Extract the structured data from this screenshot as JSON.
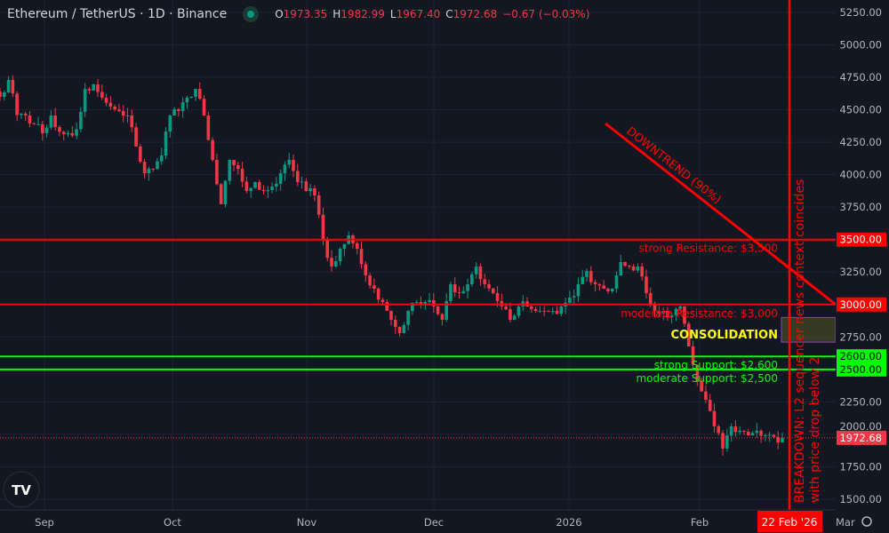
{
  "header": {
    "symbol": "Ethereum / TetherUS · 1D · Binance",
    "o_label": "O",
    "o": "1973.35",
    "h_label": "H",
    "h": "1982.99",
    "l_label": "L",
    "l": "1967.40",
    "c_label": "C",
    "c": "1972.68",
    "change": "−0.67 (−0.03%)"
  },
  "colors": {
    "up": "#089981",
    "down": "#f23645",
    "background": "#131722",
    "resistance": "#ff0000",
    "support": "#00ff00",
    "annotation": "#ff0000",
    "consolidation": "#ffff00"
  },
  "chart_data": {
    "type": "candlestick",
    "ylim": [
      1400,
      5350
    ],
    "y_ticks": [
      "5250.00",
      "5000.00",
      "4750.00",
      "4500.00",
      "4250.00",
      "4000.00",
      "3750.00",
      "3500.00",
      "3250.00",
      "3000.00",
      "2750.00",
      "2500.00",
      "2250.00",
      "2000.00",
      "1750.00",
      "1500.00"
    ],
    "y_tick_values": [
      5250,
      5000,
      4750,
      4500,
      4250,
      4000,
      3750,
      3500,
      3250,
      3000,
      2750,
      2500,
      2250,
      2000,
      1750,
      1500
    ],
    "x_ticks": [
      "Sep",
      "Oct",
      "Nov",
      "Dec",
      "2026",
      "Feb",
      "Mar"
    ],
    "closes": [
      4600,
      4730,
      4460,
      4456,
      4388,
      4319,
      4456,
      4330,
      4320,
      4350,
      4660,
      4696,
      4593,
      4525,
      4490,
      4456,
      4217,
      4011,
      4045,
      4148,
      4456,
      4490,
      4593,
      4661,
      4456,
      4114,
      3772,
      4114,
      4045,
      3874,
      3943,
      3874,
      3909,
      4011,
      4114,
      3943,
      3874,
      3840,
      3498,
      3293,
      3429,
      3532,
      3429,
      3224,
      3122,
      3019,
      2882,
      2779,
      2950,
      3019,
      3019,
      2985,
      2882,
      3156,
      3087,
      3156,
      3293,
      3156,
      3087,
      2985,
      2882,
      2985,
      2985,
      2950,
      2950,
      2950,
      2985,
      3053,
      3156,
      3258,
      3156,
      3122,
      3122,
      3327,
      3293,
      3293,
      3087,
      2950,
      2950,
      2916,
      2985,
      2677,
      2403,
      2266,
      2061,
      1890,
      2061,
      2027,
      1992,
      2027,
      1992,
      1979,
      1972.68
    ],
    "last_price": 1972.68,
    "last_price_label": "1972.68",
    "levels": [
      {
        "price": 3500,
        "label": "strong Resistance: $3,500",
        "axis_label": "3500.00",
        "type": "resistance"
      },
      {
        "price": 3000,
        "label": "moderate Resistance: $3,000",
        "axis_label": "3000.00",
        "type": "resistance"
      },
      {
        "price": 2600,
        "label": "strong Support: $2,600",
        "axis_label": "2600.00",
        "type": "support"
      },
      {
        "price": 2500,
        "label": "moderate Support: $2,500",
        "axis_label": "2500.00",
        "type": "support"
      }
    ],
    "trendline": {
      "label": "DOWNTREND (90%)",
      "from_price": 4400,
      "to_price": 3000
    },
    "consolidation": {
      "label": "CONSOLIDATION",
      "top": 2900,
      "bottom": 2710
    },
    "event": {
      "date_label": "22 Feb '26",
      "text": "BREAKDOWN: L2 sequencer news context coincides with price drop below 2"
    }
  }
}
